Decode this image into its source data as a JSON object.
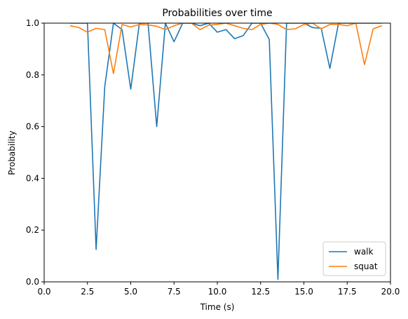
{
  "chart_data": {
    "type": "line",
    "title": "Probabilities over time",
    "xlabel": "Time (s)",
    "ylabel": "Probability",
    "xlim": [
      0,
      20
    ],
    "ylim": [
      0,
      1
    ],
    "xticks": [
      0,
      2.5,
      5,
      7.5,
      10,
      12.5,
      15,
      17.5,
      20
    ],
    "xtick_labels": [
      "0.0",
      "2.5",
      "5.0",
      "7.5",
      "10.0",
      "12.5",
      "15.0",
      "17.5",
      "20.0"
    ],
    "yticks": [
      0,
      0.2,
      0.4,
      0.6,
      0.8,
      1.0
    ],
    "ytick_labels": [
      "0.0",
      "0.2",
      "0.4",
      "0.6",
      "0.8",
      "1.0"
    ],
    "grid": false,
    "legend_position": "bottom-right",
    "series": [
      {
        "name": "walk",
        "color": "#1f77b4",
        "x": [
          1.5,
          2.0,
          2.5,
          3.0,
          3.5,
          4.0,
          4.5,
          5.0,
          5.5,
          6.0,
          6.5,
          7.0,
          7.5,
          8.0,
          8.5,
          9.0,
          9.5,
          10.0,
          10.5,
          11.0,
          11.5,
          12.0,
          12.5,
          13.0,
          13.5,
          14.0,
          14.5,
          15.0,
          15.5,
          16.0,
          16.5,
          17.0,
          17.5,
          18.0,
          18.5,
          19.0,
          19.5
        ],
        "y": [
          1.0,
          1.0,
          1.0,
          0.125,
          0.755,
          1.0,
          0.975,
          0.745,
          1.0,
          1.0,
          0.6,
          1.0,
          0.928,
          1.0,
          1.0,
          0.99,
          1.0,
          0.965,
          0.975,
          0.94,
          0.952,
          1.0,
          1.0,
          0.937,
          0.01,
          1.0,
          1.0,
          1.0,
          0.983,
          0.98,
          0.825,
          1.0,
          1.0,
          1.0,
          1.0,
          1.0,
          1.0
        ]
      },
      {
        "name": "squat",
        "color": "#ff7f0e",
        "x": [
          1.5,
          2.0,
          2.5,
          3.0,
          3.5,
          4.0,
          4.5,
          5.0,
          5.5,
          6.0,
          6.5,
          7.0,
          7.5,
          8.0,
          8.5,
          9.0,
          9.5,
          10.0,
          10.5,
          11.0,
          11.5,
          12.0,
          12.5,
          13.0,
          13.5,
          14.0,
          14.5,
          15.0,
          15.5,
          16.0,
          16.5,
          17.0,
          17.5,
          18.0,
          18.5,
          19.0,
          19.5
        ],
        "y": [
          0.99,
          0.983,
          0.965,
          0.98,
          0.975,
          0.805,
          0.995,
          0.985,
          0.995,
          0.993,
          0.988,
          0.975,
          0.99,
          1.0,
          1.0,
          0.975,
          0.992,
          0.995,
          1.0,
          0.99,
          0.98,
          0.975,
          0.995,
          1.0,
          0.995,
          0.975,
          0.978,
          0.995,
          1.0,
          0.978,
          0.995,
          0.995,
          0.99,
          1.0,
          0.84,
          0.978,
          0.99
        ]
      }
    ]
  }
}
